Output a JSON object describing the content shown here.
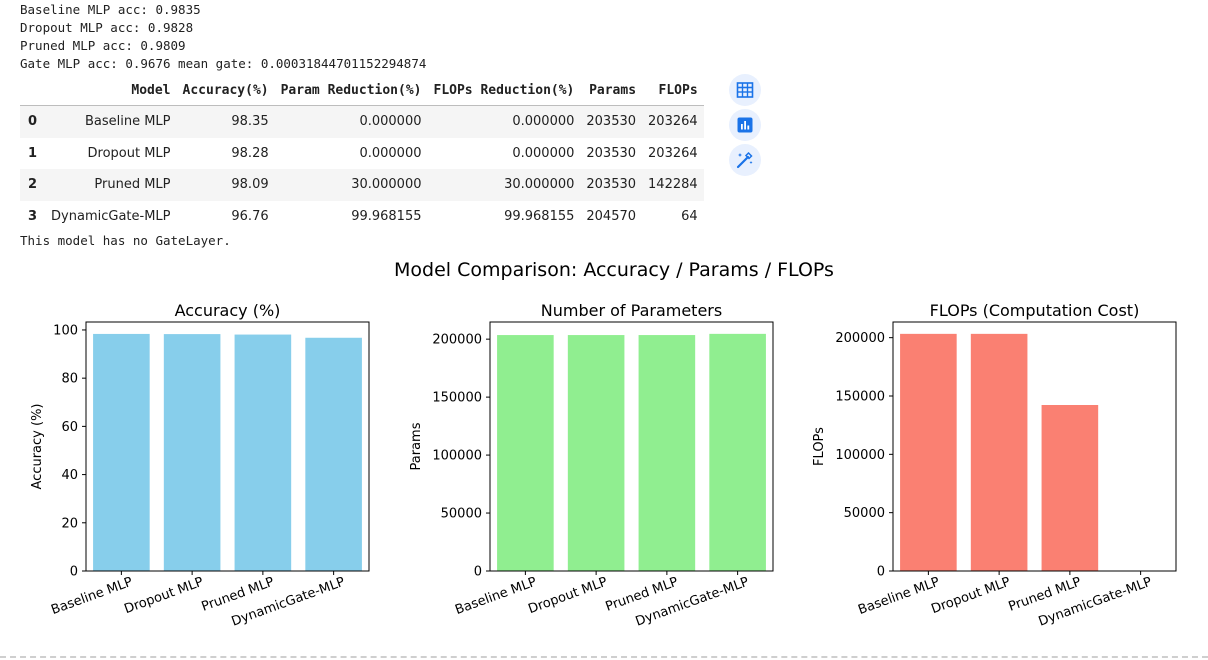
{
  "log_lines": [
    "Baseline MLP acc: 0.9835",
    "Dropout MLP acc: 0.9828",
    "Pruned MLP acc: 0.9809",
    "Gate MLP acc: 0.9676 mean gate: 0.00031844701152294874"
  ],
  "table": {
    "headers": [
      "",
      "Model",
      "Accuracy(%)",
      "Param Reduction(%)",
      "FLOPs Reduction(%)",
      "Params",
      "FLOPs"
    ],
    "rows": [
      [
        "0",
        "Baseline MLP",
        "98.35",
        "0.000000",
        "0.000000",
        "203530",
        "203264"
      ],
      [
        "1",
        "Dropout MLP",
        "98.28",
        "0.000000",
        "0.000000",
        "203530",
        "203264"
      ],
      [
        "2",
        "Pruned MLP",
        "98.09",
        "30.000000",
        "30.000000",
        "203530",
        "142284"
      ],
      [
        "3",
        "DynamicGate-MLP",
        "96.76",
        "99.968155",
        "99.968155",
        "204570",
        "64"
      ]
    ]
  },
  "after_table_line": "This model has no GateLayer.",
  "side_buttons": [
    "table-icon",
    "chart-icon",
    "magic-wand-icon"
  ],
  "accent_color": "#1a73e8",
  "figure_title": "Model Comparison: Accuracy / Params / FLOPs",
  "chart_data": [
    {
      "type": "bar",
      "title": "Accuracy (%)",
      "categories": [
        "Baseline MLP",
        "Dropout MLP",
        "Pruned MLP",
        "DynamicGate-MLP"
      ],
      "values": [
        98.35,
        98.28,
        98.09,
        96.76
      ],
      "xlabel": "",
      "ylabel": "Accuracy (%)",
      "ylim": [
        0,
        103.3
      ],
      "yticks": [
        0,
        20,
        40,
        60,
        80,
        100
      ],
      "color": "#87ceeb"
    },
    {
      "type": "bar",
      "title": "Number of Parameters",
      "categories": [
        "Baseline MLP",
        "Dropout MLP",
        "Pruned MLP",
        "DynamicGate-MLP"
      ],
      "values": [
        203530,
        203530,
        203530,
        204570
      ],
      "xlabel": "",
      "ylabel": "Params",
      "ylim": [
        0,
        214798
      ],
      "yticks": [
        0,
        50000,
        100000,
        150000,
        200000
      ],
      "color": "#90ee90"
    },
    {
      "type": "bar",
      "title": "FLOPs (Computation Cost)",
      "categories": [
        "Baseline MLP",
        "Dropout MLP",
        "Pruned MLP",
        "DynamicGate-MLP"
      ],
      "values": [
        203264,
        203264,
        142284,
        64
      ],
      "xlabel": "",
      "ylabel": "FLOPs",
      "ylim": [
        0,
        213427
      ],
      "yticks": [
        0,
        50000,
        100000,
        150000,
        200000
      ],
      "color": "#fa8072"
    }
  ]
}
